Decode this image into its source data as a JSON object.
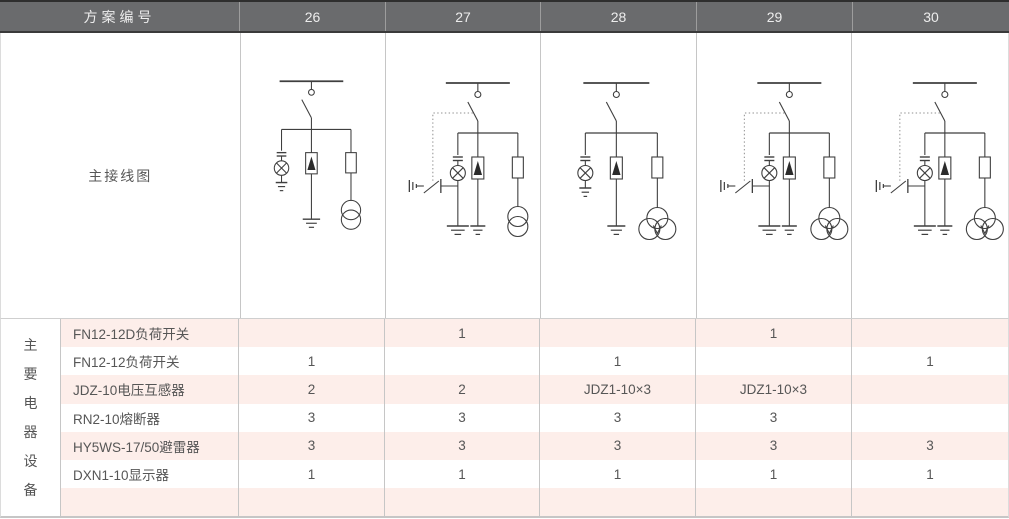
{
  "colors": {
    "header_bg": "#6a6b6d",
    "header_text": "#ededed",
    "row_pink": "#fdeeea",
    "body_text": "#565656",
    "diagram_line": "#3f3f3f",
    "divider": "#c6c6c6"
  },
  "header": {
    "label": "方案编号",
    "schemes": [
      "26",
      "27",
      "28",
      "29",
      "30"
    ]
  },
  "diagram_row": {
    "label": "主接线图"
  },
  "diagrams": [
    {
      "scheme": "26",
      "earthing_switch": false,
      "pt_windings": 2
    },
    {
      "scheme": "27",
      "earthing_switch": true,
      "pt_windings": 2
    },
    {
      "scheme": "28",
      "earthing_switch": false,
      "pt_windings": 3
    },
    {
      "scheme": "29",
      "earthing_switch": true,
      "pt_windings": 3
    },
    {
      "scheme": "30",
      "earthing_switch": true,
      "pt_windings": 3
    }
  ],
  "equipment": {
    "vertical_label": "主要电器设备",
    "vertical_label_chars": [
      "主",
      "要",
      "电",
      "器",
      "设",
      "备"
    ],
    "rows": [
      {
        "name": "FN12-12D负荷开关",
        "values": [
          "",
          "1",
          "",
          "1",
          ""
        ]
      },
      {
        "name": "FN12-12负荷开关",
        "values": [
          "1",
          "",
          "1",
          "",
          "1"
        ]
      },
      {
        "name": "JDZ-10电压互感器",
        "values": [
          "2",
          "2",
          "JDZ1-10×3",
          "JDZ1-10×3",
          ""
        ]
      },
      {
        "name": "RN2-10熔断器",
        "values": [
          "3",
          "3",
          "3",
          "3",
          ""
        ]
      },
      {
        "name": "HY5WS-17/50避雷器",
        "values": [
          "3",
          "3",
          "3",
          "3",
          "3"
        ]
      },
      {
        "name": "DXN1-10显示器",
        "values": [
          "1",
          "1",
          "1",
          "1",
          "1"
        ]
      },
      {
        "name": "",
        "values": [
          "",
          "",
          "",
          "",
          ""
        ]
      }
    ]
  }
}
